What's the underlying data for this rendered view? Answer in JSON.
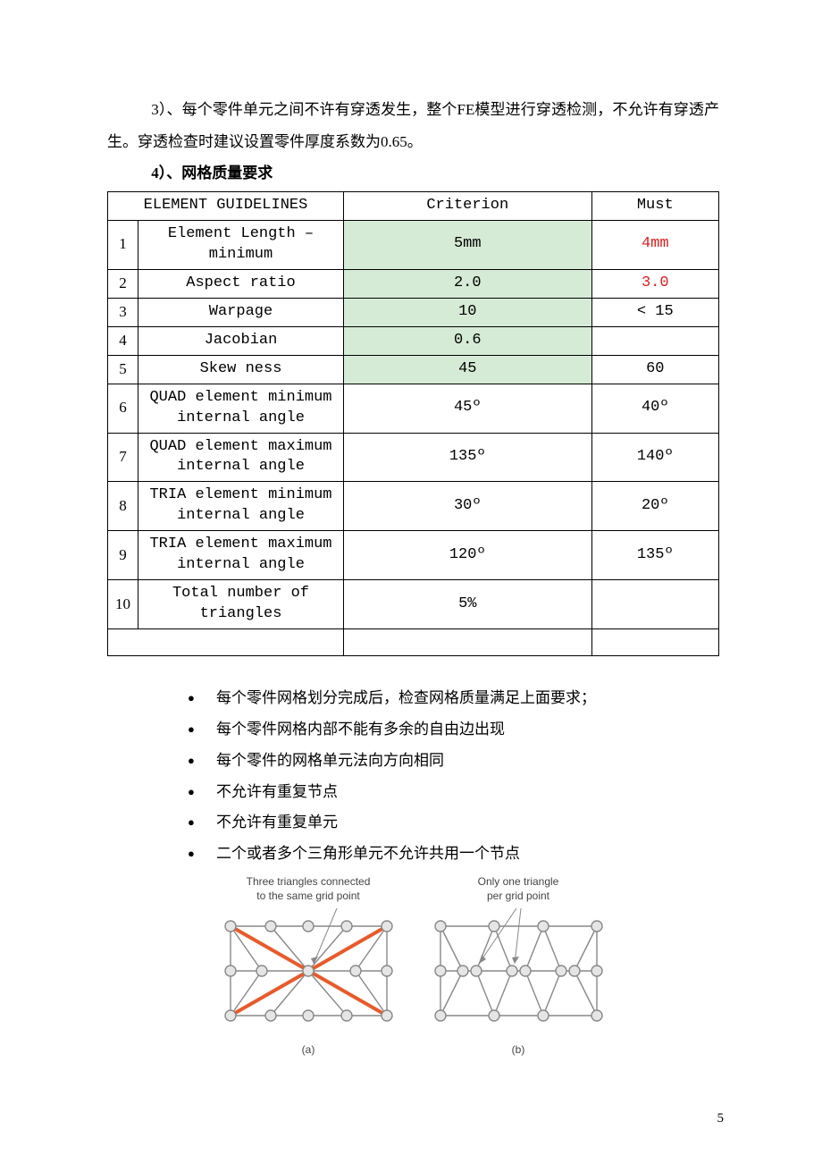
{
  "para3": "3）、每个零件单元之间不许有穿透发生，整个FE模型进行穿透检测，不允许有穿透产生。穿透检查时建议设置零件厚度系数为0.65。",
  "heading4": "4）、网格质量要求",
  "table": {
    "headers": {
      "col1": "ELEMENT GUIDELINES",
      "col2": "Criterion",
      "col3": "Must"
    },
    "rows": [
      {
        "idx": "1",
        "name": "Element Length – minimum",
        "crit": "5mm",
        "must": "4mm",
        "critGreen": true,
        "mustRed": true
      },
      {
        "idx": "2",
        "name": "Aspect ratio",
        "crit": "2.0",
        "must": "3.0",
        "critGreen": true,
        "mustRed": true
      },
      {
        "idx": "3",
        "name": "Warpage",
        "crit": "10",
        "must": "< 15",
        "critGreen": true,
        "mustRed": false
      },
      {
        "idx": "4",
        "name": "Jacobian",
        "crit": "0.6",
        "must": "",
        "critGreen": true,
        "mustRed": false
      },
      {
        "idx": "5",
        "name": "Skew ness",
        "crit": "45",
        "must": "60",
        "critGreen": true,
        "mustRed": false
      },
      {
        "idx": "6",
        "name": "QUAD element minimum internal angle",
        "crit": "45º",
        "must": "40º",
        "critGreen": false,
        "mustRed": false
      },
      {
        "idx": "7",
        "name": "QUAD element maximum internal angle",
        "crit": "135º",
        "must": "140º",
        "critGreen": false,
        "mustRed": false
      },
      {
        "idx": "8",
        "name": "TRIA element minimum internal angle",
        "crit": "30º",
        "must": "20º",
        "critGreen": false,
        "mustRed": false
      },
      {
        "idx": "9",
        "name": "TRIA element maximum internal angle",
        "crit": "120º",
        "must": "135º",
        "critGreen": false,
        "mustRed": false
      },
      {
        "idx": "10",
        "name": "Total number of triangles",
        "crit": "5%",
        "must": "",
        "critGreen": false,
        "mustRed": false
      }
    ]
  },
  "bullets": [
    "每个零件网格划分完成后，检查网格质量满足上面要求；",
    "每个零件网格内部不能有多余的自由边出现",
    "每个零件的网格单元法向方向相同",
    "不允许有重复节点",
    "不允许有重复单元",
    "二个或者多个三角形单元不允许共用一个节点"
  ],
  "diagrams": {
    "a": {
      "caption_l1": "Three triangles connected",
      "caption_l2": "to the same grid point",
      "sub": "(a)"
    },
    "b": {
      "caption_l1": "Only one triangle",
      "caption_l2": "per grid point",
      "sub": "(b)"
    }
  },
  "pageNumber": "5",
  "colors": {
    "green": "#d6ebd6",
    "red": "#e11b1b",
    "nodeFill": "#e5e5e5",
    "nodeStroke": "#888888",
    "crossStroke": "#e85a2a"
  }
}
